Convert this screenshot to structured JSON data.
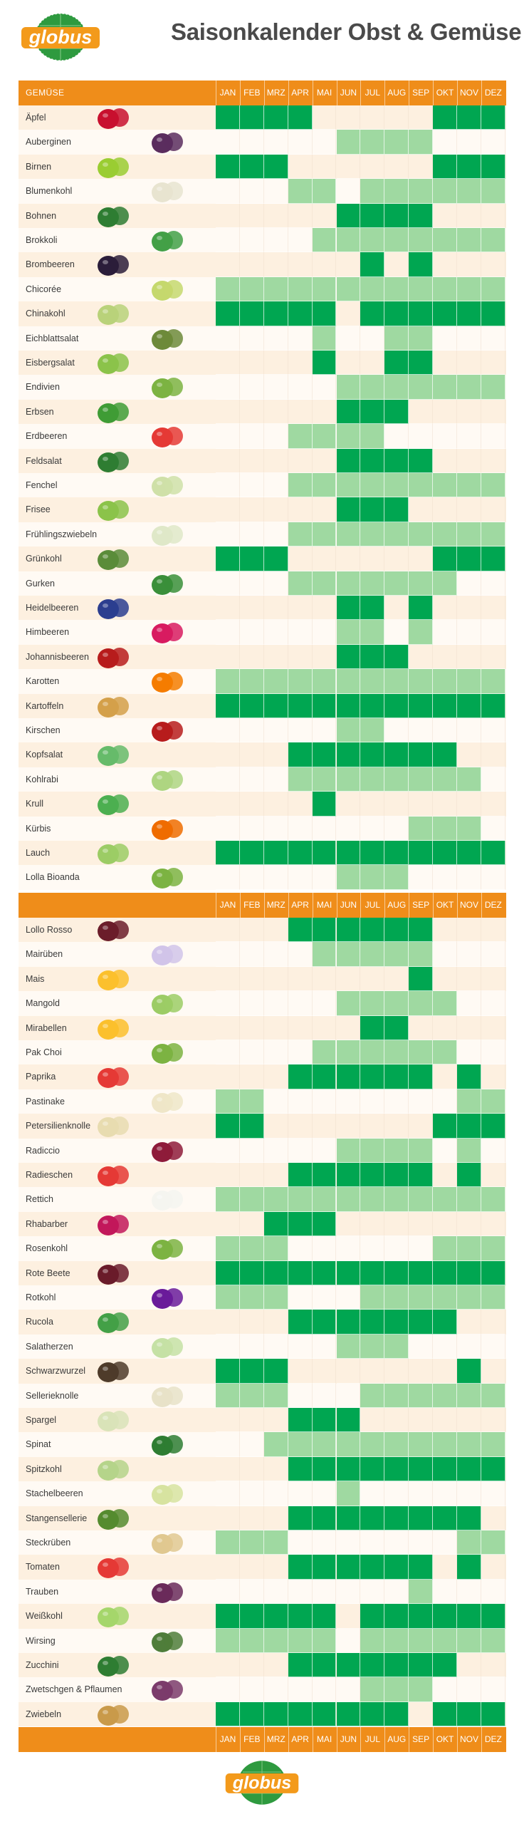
{
  "header": {
    "title": "Saisonkalender Obst & Gemüse",
    "logo_text": "globus"
  },
  "footer": {
    "logo_text": "globus"
  },
  "table_header": {
    "category_label": "GEMÜSE",
    "months": [
      "JAN",
      "FEB",
      "MRZ",
      "APR",
      "MAI",
      "JUN",
      "JUL",
      "AUG",
      "SEP",
      "OKT",
      "NOV",
      "DEZ"
    ]
  },
  "legend_colors": {
    "freiland": "#00a651",
    "lager": "#9fd9a1",
    "bar": "#ef8d1a"
  },
  "items": [
    {
      "name": "Äpfel",
      "icon": "apple-icon",
      "months": "FFFF-----FFF"
    },
    {
      "name": "Auberginen",
      "icon": "eggplant-icon",
      "months": "-----LLLL---"
    },
    {
      "name": "Birnen",
      "icon": "pear-icon",
      "months": "FFF------FFF"
    },
    {
      "name": "Blumenkohl",
      "icon": "cauliflower-icon",
      "months": "---LL-LLLLLL"
    },
    {
      "name": "Bohnen",
      "icon": "bean-icon",
      "months": "-----FFFF---"
    },
    {
      "name": "Brokkoli",
      "icon": "broccoli-icon",
      "months": "----LLLLLLLL"
    },
    {
      "name": "Brombeeren",
      "icon": "blackberry-icon",
      "months": "------F-F---"
    },
    {
      "name": "Chicorée",
      "icon": "chicory-icon",
      "months": "LLLLLLLLLLLL"
    },
    {
      "name": "Chinakohl",
      "icon": "napa-cabbage-icon",
      "months": "FFFFF-FFFFFF"
    },
    {
      "name": "Eichblattsalat",
      "icon": "oakleaf-lettuce-icon",
      "months": "----L--LL---"
    },
    {
      "name": "Eisbergsalat",
      "icon": "iceberg-lettuce-icon",
      "months": "----F--FF---"
    },
    {
      "name": "Endivien",
      "icon": "endive-icon",
      "months": "-----LLLLLLL"
    },
    {
      "name": "Erbsen",
      "icon": "pea-icon",
      "months": "-----FFF----"
    },
    {
      "name": "Erdbeeren",
      "icon": "strawberry-icon",
      "months": "---LLLL-----"
    },
    {
      "name": "Feldsalat",
      "icon": "lambs-lettuce-icon",
      "months": "-----FFFF---"
    },
    {
      "name": "Fenchel",
      "icon": "fennel-icon",
      "months": "---LLLLLLLLL"
    },
    {
      "name": "Frisee",
      "icon": "frisee-icon",
      "months": "-----FFF----"
    },
    {
      "name": "Frühlingszwiebeln",
      "icon": "spring-onion-icon",
      "months": "---LLLLLLLLL"
    },
    {
      "name": "Grünkohl",
      "icon": "kale-icon",
      "months": "FFF------FFF"
    },
    {
      "name": "Gurken",
      "icon": "cucumber-icon",
      "months": "---LLLLLLL--"
    },
    {
      "name": "Heidelbeeren",
      "icon": "blueberry-icon",
      "months": "-----FF-F---"
    },
    {
      "name": "Himbeeren",
      "icon": "raspberry-icon",
      "months": "-----LL-L---"
    },
    {
      "name": "Johannisbeeren",
      "icon": "currant-icon",
      "months": "-----FFF----"
    },
    {
      "name": "Karotten",
      "icon": "carrot-icon",
      "months": "LLLLLLLLLLLL"
    },
    {
      "name": "Kartoffeln",
      "icon": "potato-icon",
      "months": "FFFFFFFFFFFF"
    },
    {
      "name": "Kirschen",
      "icon": "cherry-icon",
      "months": "-----LL-----"
    },
    {
      "name": "Kopfsalat",
      "icon": "lettuce-icon",
      "months": "---FFFFFFF--"
    },
    {
      "name": "Kohlrabi",
      "icon": "kohlrabi-icon",
      "months": "---LLLLLLLL-"
    },
    {
      "name": "Krull",
      "icon": "curly-lettuce-icon",
      "months": "----F-------"
    },
    {
      "name": "Kürbis",
      "icon": "pumpkin-icon",
      "months": "--------LLL-"
    },
    {
      "name": "Lauch",
      "icon": "leek-icon",
      "months": "FFFFFFFFFFFF"
    },
    {
      "name": "Lolla Bioanda",
      "icon": "lollo-bionda-icon",
      "months": "-----LLL----"
    },
    {
      "name": "Lollo Rosso",
      "icon": "lollo-rosso-icon",
      "months": "---FFFFFF---"
    },
    {
      "name": "Mairüben",
      "icon": "turnip-icon",
      "months": "----LLLLL---"
    },
    {
      "name": "Mais",
      "icon": "corn-icon",
      "months": "--------F---"
    },
    {
      "name": "Mangold",
      "icon": "chard-icon",
      "months": "-----LLLLL--"
    },
    {
      "name": "Mirabellen",
      "icon": "mirabelle-icon",
      "months": "------FF----"
    },
    {
      "name": "Pak Choi",
      "icon": "pak-choi-icon",
      "months": "----LLLLLL--"
    },
    {
      "name": "Paprika",
      "icon": "bell-pepper-icon",
      "months": "---FFFFFF-F-"
    },
    {
      "name": "Pastinake",
      "icon": "parsnip-icon",
      "months": "LL--------LL"
    },
    {
      "name": "Petersilienknolle",
      "icon": "parsley-root-icon",
      "months": "FF-------FFF"
    },
    {
      "name": "Radiccio",
      "icon": "radicchio-icon",
      "months": "-----LLLL-L-"
    },
    {
      "name": "Radieschen",
      "icon": "radish-icon",
      "months": "---FFFFFF-F-"
    },
    {
      "name": "Rettich",
      "icon": "white-radish-icon",
      "months": "LLLLLLLLLLLL"
    },
    {
      "name": "Rhabarber",
      "icon": "rhubarb-icon",
      "months": "--FFF-------"
    },
    {
      "name": "Rosenkohl",
      "icon": "brussels-sprouts-icon",
      "months": "LLL------LLL"
    },
    {
      "name": "Rote Beete",
      "icon": "beetroot-icon",
      "months": "FFFFFFFFFFFF"
    },
    {
      "name": "Rotkohl",
      "icon": "red-cabbage-icon",
      "months": "LLL---LLLLLL"
    },
    {
      "name": "Rucola",
      "icon": "arugula-icon",
      "months": "---FFFFFFF--"
    },
    {
      "name": "Salatherzen",
      "icon": "romaine-hearts-icon",
      "months": "-----LLL----"
    },
    {
      "name": "Schwarzwurzel",
      "icon": "salsify-icon",
      "months": "FFF-------F-"
    },
    {
      "name": "Sellerieknolle",
      "icon": "celeriac-icon",
      "months": "LLL---LLLLLL"
    },
    {
      "name": "Spargel",
      "icon": "asparagus-icon",
      "months": "---FFF------"
    },
    {
      "name": "Spinat",
      "icon": "spinach-icon",
      "months": "--LLLLLLLLLL"
    },
    {
      "name": "Spitzkohl",
      "icon": "pointed-cabbage-icon",
      "months": "---FFFFFFFFF"
    },
    {
      "name": "Stachelbeeren",
      "icon": "gooseberry-icon",
      "months": "-----L------"
    },
    {
      "name": "Stangensellerie",
      "icon": "celery-icon",
      "months": "---FFFFFFFF-"
    },
    {
      "name": "Steckrüben",
      "icon": "rutabaga-icon",
      "months": "LLL-------LL"
    },
    {
      "name": "Tomaten",
      "icon": "tomato-icon",
      "months": "---FFFFFF-F-"
    },
    {
      "name": "Trauben",
      "icon": "grape-icon",
      "months": "--------L---"
    },
    {
      "name": "Weißkohl",
      "icon": "white-cabbage-icon",
      "months": "FFFFF-FFFFFF"
    },
    {
      "name": "Wirsing",
      "icon": "savoy-cabbage-icon",
      "months": "LLLLL-LLLLLL"
    },
    {
      "name": "Zucchini",
      "icon": "zucchini-icon",
      "months": "---FFFFFFF--"
    },
    {
      "name": "Zwetschgen & Pflaumen",
      "icon": "plum-icon",
      "months": "------LLL---"
    },
    {
      "name": "Zwiebeln",
      "icon": "onion-icon",
      "months": "FFFFFFFF-FFF"
    }
  ]
}
